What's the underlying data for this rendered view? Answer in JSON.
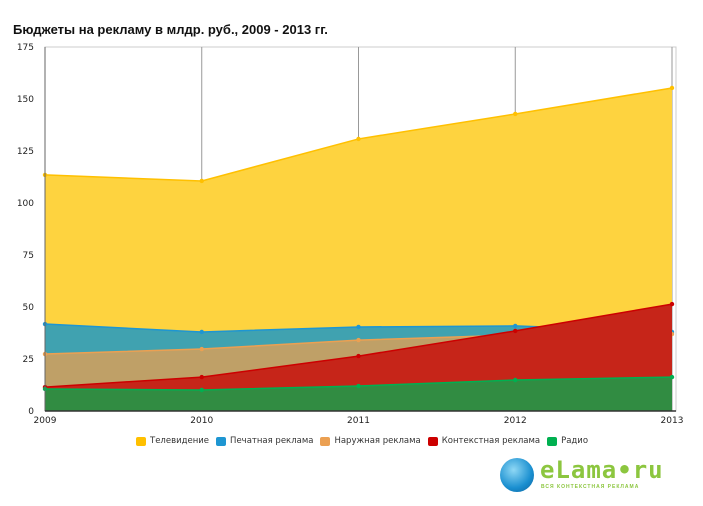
{
  "chart_data": {
    "type": "area",
    "title": "Бюджеты на рекламу в млдр. руб., 2009 - 2013 гг.",
    "xlabel": "",
    "ylabel": "",
    "x": [
      "2009",
      "2010",
      "2011",
      "2012",
      "2013"
    ],
    "ylim": [
      0,
      175
    ],
    "yticks": [
      "0",
      "25",
      "50",
      "75",
      "100",
      "125",
      "150",
      "175"
    ],
    "grid": "vertical",
    "legend_position": "bottom",
    "series": [
      {
        "name": "Телевидение",
        "color": "#ffc000",
        "fill": "#fed33f",
        "values": [
          113.5,
          110.6,
          130.8,
          142.8,
          155.3
        ]
      },
      {
        "name": "Печатная реклама",
        "color": "#1e96d2",
        "fill": "#40a2b0",
        "values": [
          41.8,
          38.0,
          40.4,
          40.9,
          38
        ]
      },
      {
        "name": "Наружная реклама",
        "color": "#eba052",
        "fill": "#bfa067",
        "values": [
          27.4,
          29.8,
          34.1,
          36.5,
          37
        ]
      },
      {
        "name": "Контекстная реклама",
        "color": "#cc0000",
        "fill": "#c62519",
        "values": [
          11.5,
          16.3,
          26.4,
          38.5,
          51.4
        ]
      },
      {
        "name": "Радио",
        "color": "#00b050",
        "fill": "#318c42",
        "values": [
          10.6,
          10.1,
          12.0,
          14.9,
          16.3
        ]
      }
    ]
  },
  "logo": {
    "brand": "eLama•ru",
    "tagline": "ВСЯ КОНТЕКСТНАЯ РЕКЛАМА"
  }
}
